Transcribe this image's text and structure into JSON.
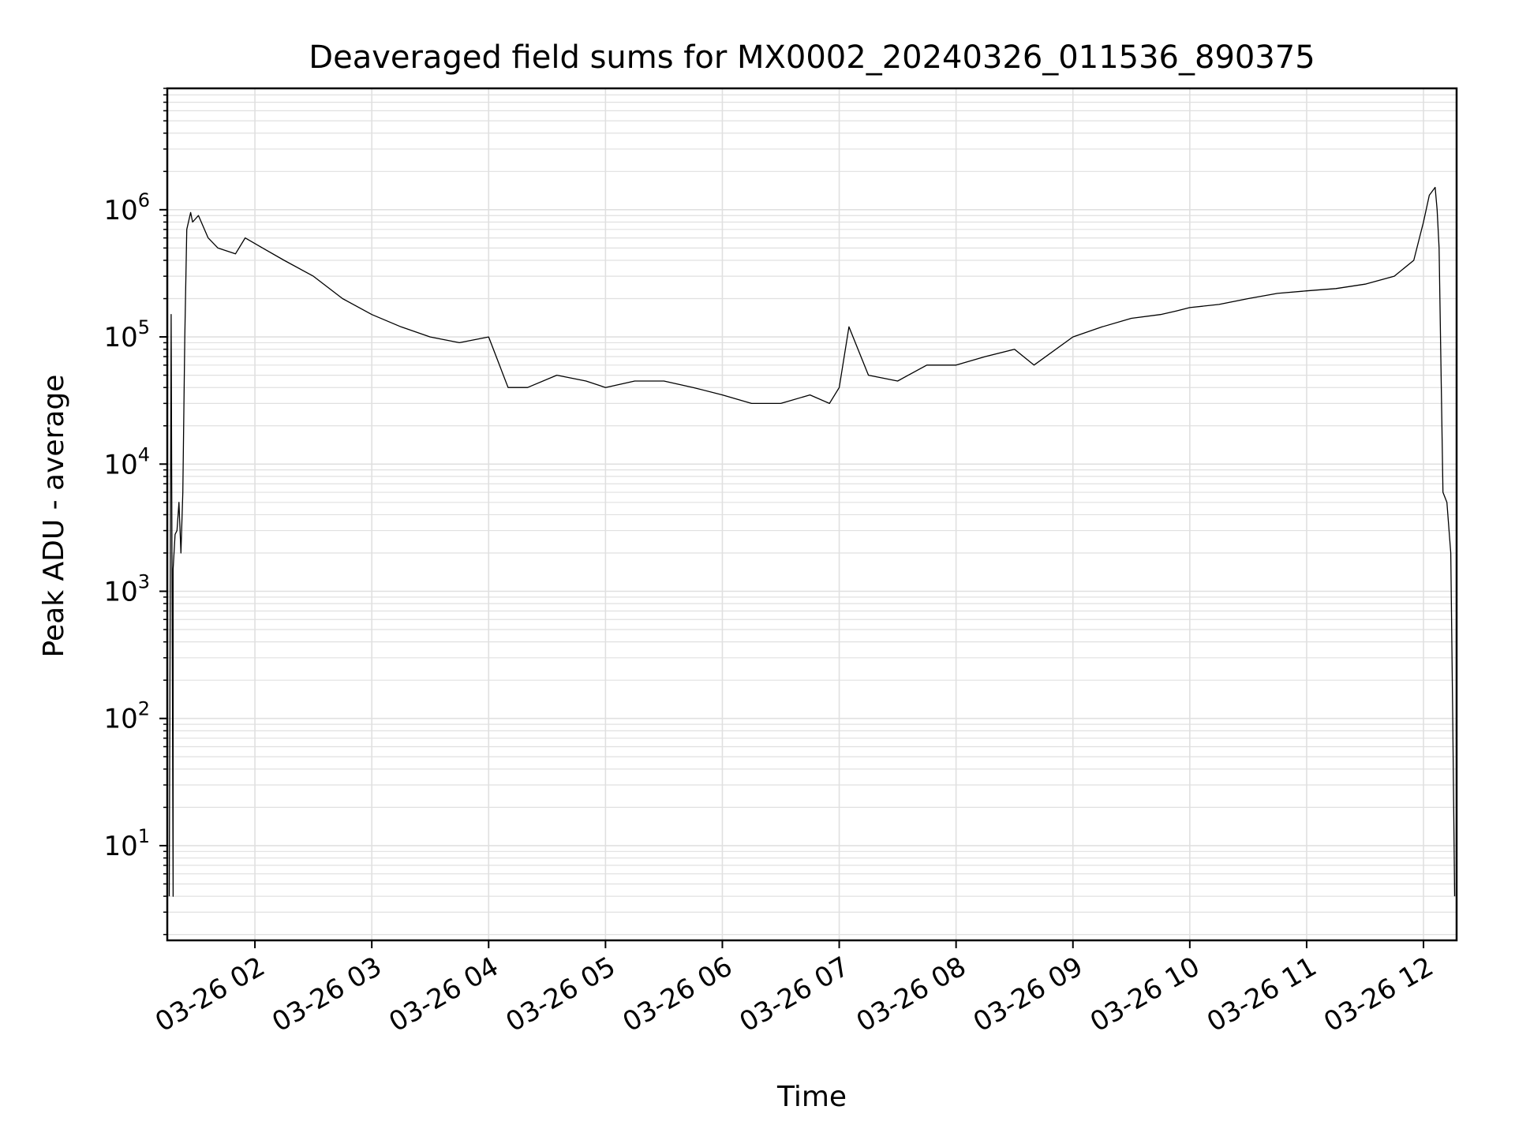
{
  "chart_data": {
    "type": "line",
    "title": "Deaveraged field sums for MX0002_20240326_011536_890375",
    "xlabel": "Time",
    "ylabel": "Peak ADU - average",
    "yscale": "log",
    "ylim": [
      1.8,
      9000000
    ],
    "xlim": [
      "2024-03-26 01:15",
      "2024-03-26 12:17"
    ],
    "grid": true,
    "line_color": "#000000",
    "grid_color": "#e0e0e0",
    "x_ticks": [
      {
        "value": "2024-03-26 02:00",
        "label": "03-26 02"
      },
      {
        "value": "2024-03-26 03:00",
        "label": "03-26 03"
      },
      {
        "value": "2024-03-26 04:00",
        "label": "03-26 04"
      },
      {
        "value": "2024-03-26 05:00",
        "label": "03-26 05"
      },
      {
        "value": "2024-03-26 06:00",
        "label": "03-26 06"
      },
      {
        "value": "2024-03-26 07:00",
        "label": "03-26 07"
      },
      {
        "value": "2024-03-26 08:00",
        "label": "03-26 08"
      },
      {
        "value": "2024-03-26 09:00",
        "label": "03-26 09"
      },
      {
        "value": "2024-03-26 10:00",
        "label": "03-26 10"
      },
      {
        "value": "2024-03-26 11:00",
        "label": "03-26 11"
      },
      {
        "value": "2024-03-26 12:00",
        "label": "03-26 12"
      }
    ],
    "y_ticks": [
      {
        "value": 10,
        "base": "10",
        "exp": "1"
      },
      {
        "value": 100,
        "base": "10",
        "exp": "2"
      },
      {
        "value": 1000,
        "base": "10",
        "exp": "3"
      },
      {
        "value": 10000,
        "base": "10",
        "exp": "4"
      },
      {
        "value": 100000,
        "base": "10",
        "exp": "5"
      },
      {
        "value": 1000000,
        "base": "10",
        "exp": "6"
      }
    ],
    "series": [
      {
        "x": [
          "2024-03-26 01:16",
          "2024-03-26 01:17",
          "2024-03-26 01:18",
          "2024-03-26 01:18",
          "2024-03-26 01:19",
          "2024-03-26 01:20",
          "2024-03-26 01:21",
          "2024-03-26 01:22",
          "2024-03-26 01:23",
          "2024-03-26 01:24",
          "2024-03-26 01:25",
          "2024-03-26 01:27",
          "2024-03-26 01:28",
          "2024-03-26 01:31",
          "2024-03-26 01:36",
          "2024-03-26 01:41",
          "2024-03-26 01:50",
          "2024-03-26 01:55",
          "2024-03-26 02:04",
          "2024-03-26 02:15",
          "2024-03-26 02:30",
          "2024-03-26 02:45",
          "2024-03-26 03:00",
          "2024-03-26 03:15",
          "2024-03-26 03:30",
          "2024-03-26 03:45",
          "2024-03-26 04:00",
          "2024-03-26 04:10",
          "2024-03-26 04:20",
          "2024-03-26 04:35",
          "2024-03-26 04:50",
          "2024-03-26 05:00",
          "2024-03-26 05:15",
          "2024-03-26 05:30",
          "2024-03-26 05:45",
          "2024-03-26 06:00",
          "2024-03-26 06:15",
          "2024-03-26 06:30",
          "2024-03-26 06:45",
          "2024-03-26 06:55",
          "2024-03-26 07:00",
          "2024-03-26 07:05",
          "2024-03-26 07:15",
          "2024-03-26 07:30",
          "2024-03-26 07:45",
          "2024-03-26 08:00",
          "2024-03-26 08:15",
          "2024-03-26 08:30",
          "2024-03-26 08:40",
          "2024-03-26 09:00",
          "2024-03-26 09:15",
          "2024-03-26 09:30",
          "2024-03-26 09:45",
          "2024-03-26 09:53",
          "2024-03-26 10:00",
          "2024-03-26 10:15",
          "2024-03-26 10:30",
          "2024-03-26 10:45",
          "2024-03-26 11:00",
          "2024-03-26 11:15",
          "2024-03-26 11:30",
          "2024-03-26 11:45",
          "2024-03-26 11:55",
          "2024-03-26 12:00",
          "2024-03-26 12:03",
          "2024-03-26 12:06",
          "2024-03-26 12:07",
          "2024-03-26 12:08",
          "2024-03-26 12:10",
          "2024-03-26 12:12",
          "2024-03-26 12:14",
          "2024-03-26 12:15",
          "2024-03-26 12:16"
        ],
        "y": [
          4,
          150000,
          4,
          1500,
          2800,
          3000,
          5000,
          2000,
          6000,
          100000,
          700000,
          950000,
          800000,
          900000,
          600000,
          500000,
          450000,
          600000,
          500000,
          400000,
          300000,
          200000,
          150000,
          120000,
          100000,
          90000,
          100000,
          40000,
          40000,
          50000,
          45000,
          40000,
          45000,
          45000,
          40000,
          35000,
          30000,
          30000,
          35000,
          30000,
          40000,
          120000,
          50000,
          45000,
          60000,
          60000,
          70000,
          80000,
          60000,
          100000,
          120000,
          140000,
          150000,
          160000,
          170000,
          180000,
          200000,
          220000,
          230000,
          240000,
          260000,
          300000,
          400000,
          800000,
          1300000,
          1500000,
          1000000,
          500000,
          6000,
          5000,
          2000,
          100,
          4
        ]
      }
    ]
  }
}
